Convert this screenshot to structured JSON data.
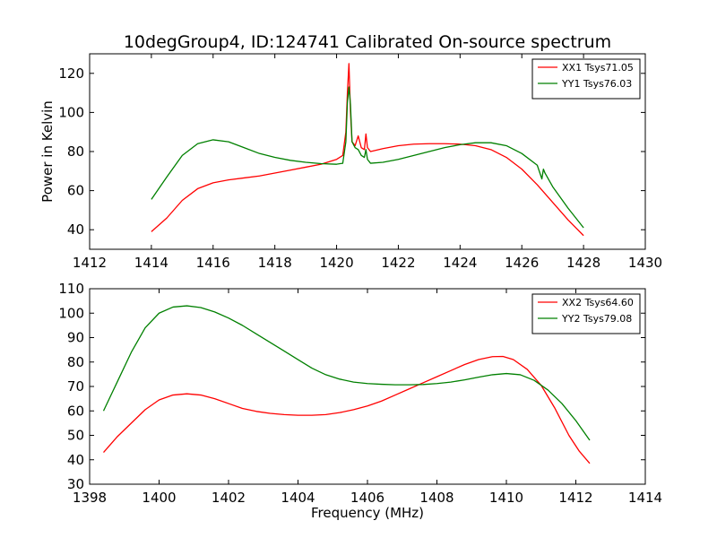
{
  "figure": {
    "title": "10degGroup4, ID:124741 Calibrated On-source spectrum"
  },
  "chart_data": [
    {
      "type": "line",
      "xlabel": "",
      "ylabel": "Power in Kelvin",
      "xlim": [
        1412,
        1430
      ],
      "ylim": [
        30,
        130
      ],
      "xticks": [
        1412,
        1414,
        1416,
        1418,
        1420,
        1422,
        1424,
        1426,
        1428,
        1430
      ],
      "yticks": [
        40,
        60,
        80,
        100,
        120
      ],
      "grid": false,
      "legend_position": "top-right",
      "series": [
        {
          "name": "XX1 Tsys71.05",
          "color": "#ff0000",
          "x": [
            1414.0,
            1414.5,
            1415.0,
            1415.5,
            1416.0,
            1416.5,
            1417.0,
            1417.5,
            1418.0,
            1418.5,
            1419.0,
            1419.5,
            1420.0,
            1420.2,
            1420.3,
            1420.35,
            1420.4,
            1420.45,
            1420.5,
            1420.6,
            1420.7,
            1420.8,
            1420.9,
            1420.95,
            1421.0,
            1421.1,
            1421.5,
            1422.0,
            1422.5,
            1423.0,
            1423.5,
            1424.0,
            1424.5,
            1425.0,
            1425.5,
            1426.0,
            1426.5,
            1427.0,
            1427.5,
            1428.0
          ],
          "y": [
            39,
            46,
            55,
            61,
            64,
            65.5,
            66.5,
            67.5,
            69,
            70.5,
            72,
            73.5,
            76,
            78,
            90,
            110,
            125,
            100,
            85,
            83,
            88,
            82,
            81,
            89,
            82,
            80,
            81.5,
            83,
            83.8,
            84,
            84,
            83.8,
            83,
            81,
            77,
            71,
            63,
            54,
            45,
            37
          ]
        },
        {
          "name": "YY1 Tsys76.03",
          "color": "#008000",
          "x": [
            1414.0,
            1414.5,
            1415.0,
            1415.5,
            1416.0,
            1416.5,
            1417.0,
            1417.5,
            1418.0,
            1418.5,
            1419.0,
            1419.5,
            1420.0,
            1420.2,
            1420.3,
            1420.35,
            1420.4,
            1420.45,
            1420.5,
            1420.6,
            1420.7,
            1420.8,
            1420.9,
            1420.95,
            1421.0,
            1421.1,
            1421.5,
            1422.0,
            1422.5,
            1423.0,
            1423.5,
            1424.0,
            1424.5,
            1425.0,
            1425.5,
            1426.0,
            1426.5,
            1426.65,
            1426.7,
            1426.75,
            1427.0,
            1427.5,
            1428.0
          ],
          "y": [
            55.5,
            67,
            78,
            84,
            86,
            85,
            82,
            79,
            77,
            75.5,
            74.5,
            73.8,
            73.5,
            74,
            85,
            105,
            113,
            104,
            85,
            82,
            81,
            78,
            77,
            81,
            76,
            74,
            74.5,
            76,
            78,
            80,
            82,
            83.5,
            84.5,
            84.5,
            83,
            79,
            73,
            66,
            71,
            69,
            62,
            51,
            41
          ]
        }
      ]
    },
    {
      "type": "line",
      "xlabel": "Frequency (MHz)",
      "ylabel": "",
      "xlim": [
        1398,
        1414
      ],
      "ylim": [
        30,
        110
      ],
      "xticks": [
        1398,
        1400,
        1402,
        1404,
        1406,
        1408,
        1410,
        1412,
        1414
      ],
      "yticks": [
        30,
        40,
        50,
        60,
        70,
        80,
        90,
        100,
        110
      ],
      "grid": false,
      "legend_position": "top-right",
      "series": [
        {
          "name": "XX2 Tsys64.60",
          "color": "#ff0000",
          "x": [
            1398.4,
            1398.8,
            1399.2,
            1399.6,
            1400.0,
            1400.4,
            1400.8,
            1401.2,
            1401.6,
            1402.0,
            1402.4,
            1402.8,
            1403.2,
            1403.6,
            1404.0,
            1404.4,
            1404.8,
            1405.2,
            1405.6,
            1406.0,
            1406.4,
            1406.8,
            1407.2,
            1407.6,
            1408.0,
            1408.4,
            1408.8,
            1409.2,
            1409.6,
            1409.9,
            1410.2,
            1410.6,
            1411.0,
            1411.4,
            1411.8,
            1412.1,
            1412.4
          ],
          "y": [
            43,
            49.5,
            55,
            60.5,
            64.5,
            66.5,
            67,
            66.5,
            65,
            63,
            61,
            59.8,
            59,
            58.5,
            58.2,
            58.2,
            58.5,
            59.3,
            60.5,
            62,
            64,
            66.5,
            69,
            71.5,
            74,
            76.5,
            79,
            81,
            82.2,
            82.3,
            81,
            77,
            70.5,
            61,
            50,
            43.5,
            38.5
          ]
        },
        {
          "name": "YY2 Tsys79.08",
          "color": "#008000",
          "x": [
            1398.4,
            1398.8,
            1399.2,
            1399.6,
            1400.0,
            1400.4,
            1400.8,
            1401.2,
            1401.6,
            1402.0,
            1402.4,
            1402.8,
            1403.2,
            1403.6,
            1404.0,
            1404.4,
            1404.8,
            1405.2,
            1405.6,
            1406.0,
            1406.4,
            1406.8,
            1407.2,
            1407.6,
            1408.0,
            1408.4,
            1408.8,
            1409.2,
            1409.6,
            1410.0,
            1410.4,
            1410.8,
            1411.2,
            1411.6,
            1412.0,
            1412.4
          ],
          "y": [
            60,
            72,
            84,
            94,
            100,
            102.5,
            103,
            102.3,
            100.5,
            98,
            95,
            91.5,
            88,
            84.5,
            81,
            77.5,
            74.8,
            73,
            71.8,
            71.2,
            70.9,
            70.7,
            70.7,
            70.8,
            71.2,
            71.8,
            72.7,
            73.8,
            74.8,
            75.3,
            74.8,
            72.5,
            68.5,
            63,
            56,
            48
          ]
        }
      ]
    }
  ]
}
